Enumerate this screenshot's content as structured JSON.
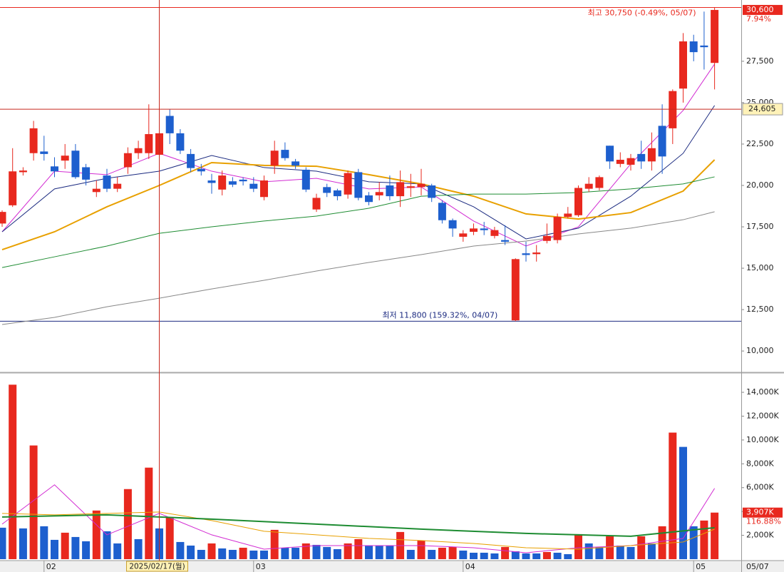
{
  "chart_data": [
    {
      "type": "candlestick",
      "open": [
        17700,
        18800,
        20800,
        21950,
        22050,
        21150,
        21500,
        22100,
        21100,
        19600,
        20600,
        19800,
        21100,
        21950,
        21950,
        21850,
        24200,
        23150,
        21900,
        21000,
        20300,
        19750,
        20250,
        20350,
        20100,
        19300,
        21200,
        22150,
        21450,
        20950,
        18550,
        19900,
        19700,
        19450,
        20800,
        19400,
        19400,
        20000,
        19350,
        19850,
        19900,
        20000,
        18950,
        17900,
        16900,
        17200,
        17400,
        16950,
        16700,
        11850,
        15900,
        15850,
        16650,
        16700,
        18100,
        18200,
        19800,
        19850,
        22400,
        21300,
        21250,
        21900,
        21450,
        23600,
        23450,
        25850,
        28700,
        28450,
        27400
      ],
      "high": [
        18500,
        22250,
        21100,
        23900,
        23000,
        21700,
        22500,
        22500,
        21300,
        20300,
        21000,
        20500,
        22300,
        22700,
        24900,
        24300,
        24600,
        23400,
        22200,
        21300,
        20700,
        20900,
        20500,
        20500,
        20500,
        20600,
        22700,
        22600,
        21600,
        21100,
        19500,
        20100,
        19800,
        20900,
        21000,
        19600,
        20200,
        20600,
        20900,
        20700,
        21000,
        20100,
        19100,
        18000,
        17300,
        17700,
        17800,
        17500,
        17600,
        15600,
        16600,
        16400,
        17700,
        18300,
        18700,
        20000,
        20500,
        20600,
        22400,
        22000,
        21900,
        22700,
        23200,
        24900,
        25800,
        29200,
        29100,
        30500,
        30750
      ],
      "low": [
        17500,
        18700,
        20600,
        21500,
        21500,
        20500,
        21000,
        20400,
        20000,
        19300,
        19600,
        19600,
        20700,
        21600,
        21600,
        21600,
        22500,
        21900,
        20800,
        20600,
        19500,
        19400,
        19900,
        20000,
        19600,
        19100,
        20700,
        21500,
        21000,
        19600,
        18400,
        19300,
        19100,
        19200,
        19100,
        18800,
        19100,
        19100,
        18700,
        19300,
        19400,
        19000,
        17700,
        16900,
        16600,
        17000,
        17000,
        16800,
        16400,
        11800,
        15400,
        15400,
        16500,
        16500,
        18000,
        18100,
        19600,
        19700,
        21000,
        21100,
        20900,
        21000,
        20900,
        20700,
        22500,
        25000,
        27500,
        27000,
        25800
      ],
      "close": [
        18400,
        20850,
        20900,
        23450,
        21900,
        20850,
        21800,
        20500,
        20350,
        19800,
        19800,
        20100,
        21950,
        22250,
        23100,
        23150,
        23150,
        22100,
        21050,
        20850,
        20150,
        20600,
        20050,
        20250,
        19800,
        20300,
        22100,
        21650,
        21200,
        19750,
        19250,
        19550,
        19350,
        20750,
        19250,
        19000,
        19600,
        19350,
        20200,
        19950,
        20100,
        19250,
        17900,
        17400,
        17100,
        17400,
        17300,
        17300,
        16600,
        15550,
        15800,
        15950,
        16950,
        18100,
        18300,
        19850,
        20100,
        20500,
        21450,
        21550,
        21650,
        21450,
        22250,
        21750,
        25700,
        28700,
        28050,
        28350,
        30600
      ],
      "up_color": "#e8281e",
      "down_color": "#1d5fce",
      "ylim": [
        8800,
        31200
      ],
      "yticks": [
        {
          "value": 10000,
          "label": "10,000"
        },
        {
          "value": 12500,
          "label": "12,500"
        },
        {
          "value": 15000,
          "label": "15,000"
        },
        {
          "value": 17500,
          "label": "17,500"
        },
        {
          "value": 20000,
          "label": "20,000"
        },
        {
          "value": 22500,
          "label": "22,500"
        },
        {
          "value": 25000,
          "label": "25,000"
        },
        {
          "value": 27500,
          "label": "27,500"
        }
      ],
      "series": [
        {
          "color": "#d22bd2",
          "x": [
            0,
            5,
            10,
            15,
            20,
            25,
            30,
            35,
            40,
            45,
            50,
            55,
            60,
            65,
            68
          ],
          "values": [
            17200,
            20860,
            20650,
            21940,
            20860,
            20220,
            20430,
            19790,
            19910,
            17850,
            16340,
            17500,
            21300,
            24530,
            27330
          ]
        },
        {
          "color": "#1b2a80",
          "x": [
            0,
            5,
            10,
            15,
            20,
            25,
            30,
            35,
            40,
            45,
            50,
            55,
            60,
            65,
            68
          ],
          "values": [
            17200,
            19790,
            20430,
            20860,
            21810,
            21080,
            20860,
            20220,
            20090,
            18710,
            16770,
            17420,
            19350,
            21940,
            24830
          ]
        },
        {
          "color": "#e8a000",
          "x": [
            0,
            5,
            10,
            15,
            20,
            25,
            30,
            35,
            40,
            45,
            50,
            55,
            60,
            65,
            68
          ],
          "values": [
            16120,
            17200,
            18710,
            20000,
            21380,
            21210,
            21160,
            20650,
            20090,
            19350,
            18280,
            17970,
            18360,
            19660,
            21550
          ]
        },
        {
          "color": "#1e8c32",
          "x": [
            0,
            5,
            10,
            15,
            20,
            25,
            30,
            35,
            40,
            45,
            50,
            55,
            60,
            65,
            68
          ],
          "values": [
            15040,
            15690,
            16340,
            17110,
            17500,
            17850,
            18150,
            18620,
            19350,
            19480,
            19480,
            19570,
            19790,
            20090,
            20520
          ]
        },
        {
          "color": "#888888",
          "x": [
            0,
            5,
            10,
            15,
            20,
            25,
            30,
            35,
            40,
            45,
            50,
            55,
            60,
            65,
            68
          ],
          "values": [
            11600,
            12030,
            12670,
            13190,
            13750,
            14270,
            14830,
            15350,
            15820,
            16340,
            16640,
            17070,
            17420,
            17930,
            18410
          ]
        }
      ],
      "high_marker": {
        "value": 30750,
        "label": "최고 30,750 (-0.49%, 05/07)",
        "color": "#e8281e"
      },
      "low_marker": {
        "value": 11800,
        "label": "최저 11,800 (159.32%, 04/07)",
        "color": "#1b2a80"
      },
      "current_price": {
        "value": 30600,
        "label": "30,600"
      },
      "current_change": "7.94%",
      "crosshair_price": {
        "value": 24605,
        "label": "24,605"
      }
    },
    {
      "type": "bar",
      "categories": [
        null,
        null,
        null,
        null,
        "02",
        null,
        null,
        null,
        null,
        null,
        null,
        null,
        null,
        null,
        null,
        "2025/02/17(월)",
        null,
        null,
        null,
        null,
        null,
        null,
        null,
        null,
        "03",
        null,
        null,
        null,
        null,
        null,
        null,
        null,
        null,
        null,
        null,
        null,
        null,
        null,
        null,
        null,
        null,
        null,
        null,
        null,
        "04",
        null,
        null,
        null,
        null,
        null,
        null,
        null,
        null,
        null,
        null,
        null,
        null,
        null,
        null,
        null,
        null,
        null,
        null,
        null,
        null,
        null,
        "05",
        null,
        null
      ],
      "crosshair_category": "2025/02/17(월)",
      "last_date": "05/07",
      "values": [
        2640,
        14640,
        2580,
        9540,
        2760,
        1620,
        2220,
        1860,
        1500,
        4080,
        2340,
        1320,
        5880,
        1680,
        7680,
        2580,
        3480,
        1440,
        1140,
        780,
        1320,
        900,
        780,
        960,
        720,
        720,
        2460,
        960,
        960,
        1320,
        1200,
        1020,
        840,
        1320,
        1680,
        1140,
        1140,
        1140,
        2280,
        780,
        1560,
        780,
        960,
        1020,
        720,
        540,
        540,
        480,
        1020,
        660,
        480,
        480,
        600,
        540,
        420,
        2100,
        1320,
        1020,
        1920,
        1140,
        1020,
        1920,
        1320,
        2760,
        10620,
        9420,
        2760,
        3240,
        3907
      ],
      "up_color": "#e8281e",
      "down_color": "#1d5fce",
      "ylim": [
        0,
        15500
      ],
      "yticks": [
        {
          "value": 2000,
          "label": "2,000K"
        },
        {
          "value": 4000,
          "label": "4,000K"
        },
        {
          "value": 6000,
          "label": "6,000K"
        },
        {
          "value": 8000,
          "label": "8,000K"
        },
        {
          "value": 10000,
          "label": "10,000K"
        },
        {
          "value": 12000,
          "label": "12,000K"
        },
        {
          "value": 14000,
          "label": "14,000K"
        }
      ],
      "series": [
        {
          "color": "#d22bd2",
          "x": [
            0,
            5,
            10,
            15,
            20,
            25,
            30,
            35,
            40,
            45,
            50,
            55,
            60,
            65,
            68
          ],
          "values": [
            2940,
            6240,
            2040,
            3840,
            2040,
            840,
            1140,
            1140,
            1140,
            960,
            540,
            960,
            1140,
            1740,
            5940
          ]
        },
        {
          "color": "#e8a000",
          "x": [
            0,
            5,
            10,
            15,
            20,
            25,
            30,
            35,
            40,
            45,
            50,
            55,
            60,
            65,
            68
          ],
          "values": [
            3840,
            3720,
            3840,
            3960,
            3240,
            2340,
            2040,
            1740,
            1560,
            1320,
            960,
            840,
            1140,
            1440,
            2520
          ]
        },
        {
          "color": "#1e8c32",
          "x": [
            0,
            10,
            20,
            30,
            40,
            50,
            60,
            68
          ],
          "values": [
            3540,
            3720,
            3360,
            2940,
            2520,
            2160,
            1920,
            2640
          ]
        }
      ],
      "current_volume": {
        "value": 3907,
        "label": "3,907K"
      },
      "volume_ratio": "116.88%"
    }
  ]
}
